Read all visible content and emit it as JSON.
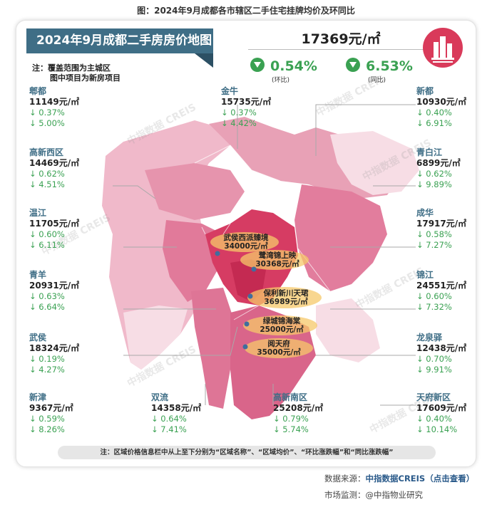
{
  "caption": "图：2024年9月成都各市辖区二手住宅挂牌均价及环同比",
  "banner_title": "2024年9月成都二手房房价地图",
  "note": {
    "line1": "注：覆盖范围为主城区",
    "line2": "图中项目为新房项目"
  },
  "summary": {
    "avg_price": "17369元/㎡",
    "mom": "0.54%",
    "mom_label": "(环比)",
    "yoy": "6.53%",
    "yoy_label": "(同比)"
  },
  "watermark": "中指数据 CREIS",
  "districts": {
    "pidu": {
      "name": "郫都",
      "price": "11149元/㎡",
      "mom": "↓ 0.37%",
      "yoy": "↓ 5.00%"
    },
    "jinniu": {
      "name": "金牛",
      "price": "15735元/㎡",
      "mom": "↓ 0.37%",
      "yoy": "↓ 4.42%"
    },
    "xindu": {
      "name": "新都",
      "price": "10930元/㎡",
      "mom": "↓ 0.40%",
      "yoy": "↓ 6.91%"
    },
    "gaoxinxi": {
      "name": "高新西区",
      "price": "14469元/㎡",
      "mom": "↓ 0.62%",
      "yoy": "↓ 4.51%"
    },
    "qingbaijiang": {
      "name": "青白江",
      "price": "6899元/㎡",
      "mom": "↓ 0.62%",
      "yoy": "↓ 9.89%"
    },
    "wenjiang": {
      "name": "温江",
      "price": "11705元/㎡",
      "mom": "↓ 0.60%",
      "yoy": "↓ 6.11%"
    },
    "chenghua": {
      "name": "成华",
      "price": "17917元/㎡",
      "mom": "↓ 0.58%",
      "yoy": "↓ 7.27%"
    },
    "qingyang": {
      "name": "青羊",
      "price": "20931元/㎡",
      "mom": "↓ 0.63%",
      "yoy": "↓ 6.64%"
    },
    "jinjiang": {
      "name": "锦江",
      "price": "24551元/㎡",
      "mom": "↓ 0.60%",
      "yoy": "↓ 7.32%"
    },
    "wuhou": {
      "name": "武侯",
      "price": "18324元/㎡",
      "mom": "↓ 0.19%",
      "yoy": "↓ 4.27%"
    },
    "longquanyi": {
      "name": "龙泉驿",
      "price": "12438元/㎡",
      "mom": "↓ 0.70%",
      "yoy": "↓ 9.91%"
    },
    "xinjin": {
      "name": "新津",
      "price": "9367元/㎡",
      "mom": "↓ 0.59%",
      "yoy": "↓ 8.26%"
    },
    "shuangliu": {
      "name": "双流",
      "price": "14358元/㎡",
      "mom": "↓ 0.64%",
      "yoy": "↓ 7.41%"
    },
    "gaoxinnan": {
      "name": "高新南区",
      "price": "25208元/㎡",
      "mom": "↓ 0.79%",
      "yoy": "↓ 5.74%"
    },
    "tianfu": {
      "name": "天府新区",
      "price": "17609元/㎡",
      "mom": "↓ 0.40%",
      "yoy": "↓ 10.14%"
    }
  },
  "projects": [
    {
      "name": "武侯西派臻境",
      "price": "34000元/㎡"
    },
    {
      "name": "鹭湾锦上映",
      "price": "30368元/㎡"
    },
    {
      "name": "保利新川天珺",
      "price": "36989元/㎡"
    },
    {
      "name": "绿城锦海棠",
      "price": "25000元/㎡"
    },
    {
      "name": "阅天府",
      "price": "35000元/㎡"
    }
  ],
  "footnote": "注：区域价格信息栏中从上至下分别为“区域名称”、“区域均价”、“环比涨跌幅”和“同比涨跌幅”",
  "source": {
    "label": "数据来源：",
    "name": "中指数据CREIS（点击查看）"
  },
  "monitor": "市场监测：@中指物业研究",
  "colors": {
    "banner": "#3f6e86",
    "down": "#3aa152",
    "core": "#d63c63",
    "light": "#f5d2dd",
    "mid": "#e27d9d"
  }
}
